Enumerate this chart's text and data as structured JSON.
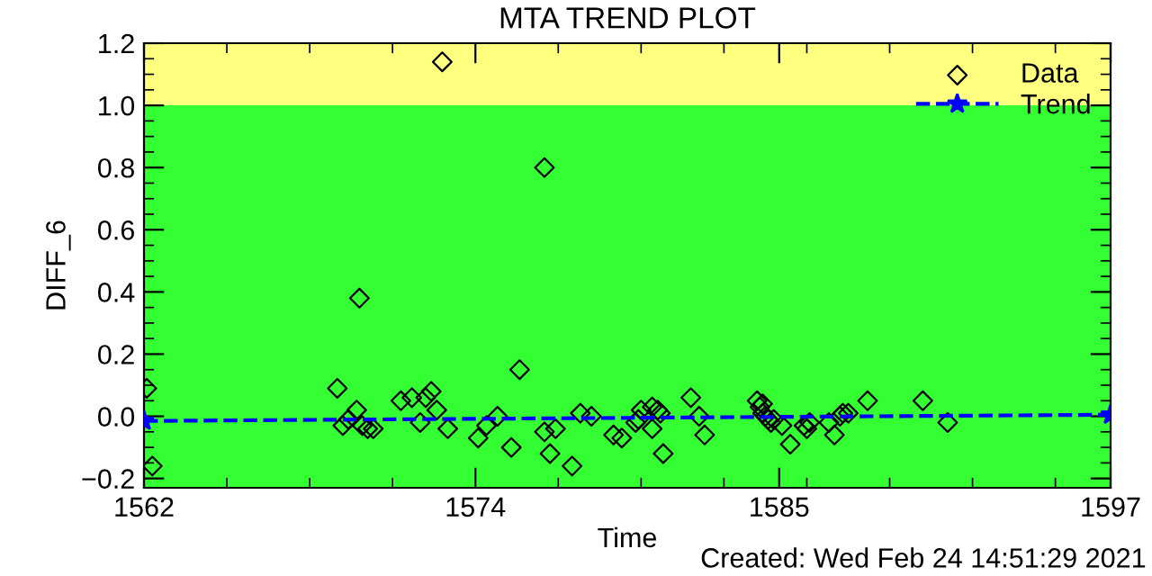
{
  "chart_data": {
    "type": "scatter",
    "title": "MTA TREND PLOT",
    "xlabel": "Time",
    "ylabel": "DIFF_6",
    "annotations": [
      "Created: Wed Feb 24 14:51:29 2021"
    ],
    "xlim": [
      1562,
      1597
    ],
    "xticks": [
      1562,
      1574,
      1585,
      1597
    ],
    "ylim": [
      -0.23,
      1.2
    ],
    "yticks": [
      {
        "value": -0.2,
        "label": "−0.2"
      },
      {
        "value": 0.0,
        "label": "0.0"
      },
      {
        "value": 0.2,
        "label": "0.2"
      },
      {
        "value": 0.4,
        "label": "0.4"
      },
      {
        "value": 0.6,
        "label": "0.6"
      },
      {
        "value": 0.8,
        "label": "0.8"
      },
      {
        "value": 1.0,
        "label": "1.0"
      },
      {
        "value": 1.2,
        "label": "1.2"
      }
    ],
    "bands": [
      {
        "axis": "y",
        "from": 1.0,
        "to": 1.2,
        "color": "#ffff80"
      },
      {
        "axis": "y",
        "from": -0.23,
        "to": 1.0,
        "color": "#33ff33"
      }
    ],
    "legend": "top right",
    "grid": false,
    "series": [
      {
        "name": "Data",
        "marker": "diamond",
        "color": "#000000",
        "x": [
          1562.1,
          1562.3,
          1569.0,
          1569.2,
          1569.4,
          1569.7,
          1569.8,
          1569.9,
          1570.1,
          1570.3,
          1571.3,
          1571.7,
          1572.0,
          1572.2,
          1572.4,
          1572.6,
          1572.8,
          1573.0,
          1574.1,
          1574.4,
          1574.8,
          1575.3,
          1575.6,
          1576.5,
          1576.5,
          1576.7,
          1576.9,
          1577.5,
          1577.8,
          1578.2,
          1579.0,
          1579.3,
          1579.8,
          1579.9,
          1580.0,
          1580.4,
          1580.6,
          1580.7,
          1580.4,
          1580.8,
          1581.8,
          1582.1,
          1582.3,
          1584.2,
          1584.3,
          1584.4,
          1584.5,
          1584.6,
          1584.7,
          1584.8,
          1584.4,
          1585.1,
          1585.4,
          1585.9,
          1586.0,
          1586.1,
          1586.8,
          1587.0,
          1587.2,
          1587.3,
          1587.5,
          1588.2,
          1590.2,
          1591.1
        ],
        "values": [
          0.09,
          -0.16,
          0.09,
          -0.03,
          -0.01,
          0.02,
          0.38,
          -0.03,
          -0.04,
          -0.04,
          0.05,
          0.06,
          -0.02,
          0.06,
          0.08,
          0.02,
          1.14,
          -0.04,
          -0.07,
          -0.03,
          0.0,
          -0.1,
          0.15,
          0.8,
          -0.05,
          -0.12,
          -0.04,
          -0.16,
          0.01,
          0.0,
          -0.06,
          -0.07,
          -0.02,
          -0.01,
          0.02,
          0.03,
          0.02,
          0.01,
          -0.04,
          -0.12,
          0.06,
          0.0,
          -0.06,
          0.05,
          0.03,
          0.01,
          0.0,
          -0.01,
          -0.02,
          -0.01,
          0.04,
          -0.03,
          -0.09,
          -0.03,
          -0.04,
          -0.02,
          -0.02,
          -0.06,
          0.0,
          0.01,
          0.01,
          0.05,
          0.05,
          -0.02
        ]
      },
      {
        "name": "Trend",
        "type": "line",
        "marker": "star",
        "line_style": "dashed",
        "color": "#0000ff",
        "x": [
          1562,
          1597
        ],
        "values": [
          -0.015,
          0.005
        ]
      }
    ]
  }
}
